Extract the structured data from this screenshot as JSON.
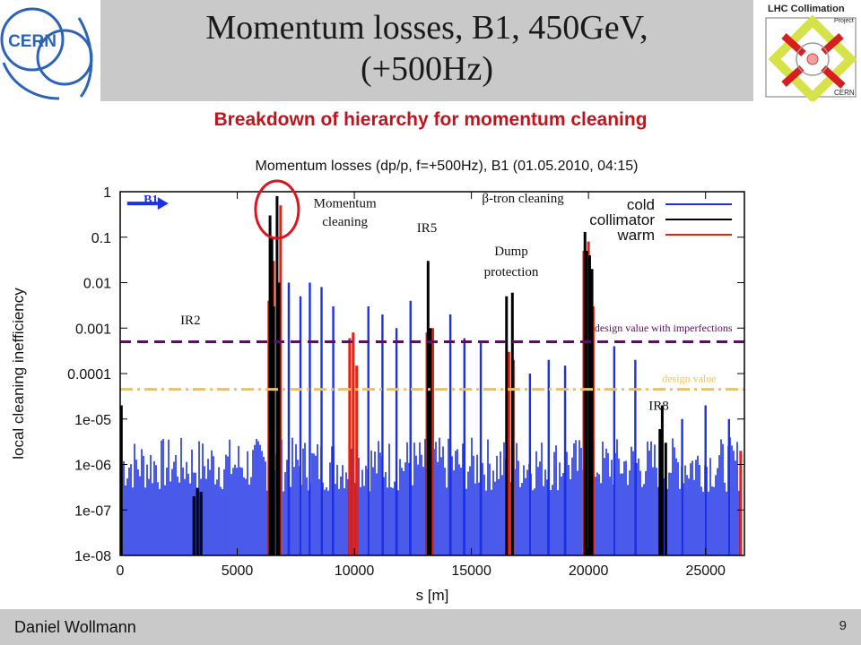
{
  "slide": {
    "title_line1": "Momentum losses, B1, 450GeV,",
    "title_line2": "(+500Hz)",
    "subtitle": "Breakdown of hierarchy for momentum cleaning",
    "author": "Daniel Wollmann",
    "page_number": "9",
    "cern_logo_text": "CERN",
    "lhc_logo_text": "LHC Collimation",
    "lhc_logo_sub": "Project",
    "lhc_logo_bottom": "CERN"
  },
  "colors": {
    "cold": "#1c31e6",
    "collimator": "#000000",
    "warm": "#e8220f",
    "design_imperfections": "#5a1060",
    "design_value": "#f5c242",
    "subtitle": "#c0141c",
    "highlight_circle": "#d9161f"
  },
  "chart_data": {
    "type": "bar",
    "title": "Momentum losses (dp/p, f=+500Hz), B1 (01.05.2010, 04:15)",
    "xlabel": "s [m]",
    "ylabel": "local cleaning inefficiency",
    "xlim": [
      0,
      26659
    ],
    "ylim": [
      1e-08,
      1
    ],
    "yscale": "log",
    "x_ticks": [
      0,
      5000,
      10000,
      15000,
      20000,
      25000
    ],
    "x_tick_labels": [
      "0",
      "5000",
      "10000",
      "15000",
      "20000",
      "25000"
    ],
    "y_ticks": [
      1,
      0.1,
      0.01,
      0.001,
      0.0001,
      1e-05,
      1e-06,
      1e-07,
      1e-08
    ],
    "y_tick_labels": [
      "1",
      "0.1",
      "0.01",
      "0.001",
      "0.0001",
      "1e-05",
      "1e-06",
      "1e-07",
      "1e-08"
    ],
    "legend": {
      "placement": "top-right",
      "entries": [
        {
          "label": "cold",
          "color": "#1c31e6"
        },
        {
          "label": "collimator",
          "color": "#000000"
        },
        {
          "label": "warm",
          "color": "#e8220f"
        }
      ]
    },
    "series": [
      {
        "name": "collimator",
        "points": [
          {
            "x": 50,
            "y": 2e-05
          },
          {
            "x": 3150,
            "y": 2e-07
          },
          {
            "x": 3300,
            "y": 3e-07
          },
          {
            "x": 3450,
            "y": 2.5e-07
          },
          {
            "x": 6400,
            "y": 0.3
          },
          {
            "x": 6480,
            "y": 0.1
          },
          {
            "x": 6560,
            "y": 0.003
          },
          {
            "x": 6700,
            "y": 0.8
          },
          {
            "x": 6780,
            "y": 0.01
          },
          {
            "x": 13150,
            "y": 0.03
          },
          {
            "x": 13250,
            "y": 0.001
          },
          {
            "x": 16500,
            "y": 0.005
          },
          {
            "x": 16750,
            "y": 0.006
          },
          {
            "x": 19850,
            "y": 0.13
          },
          {
            "x": 19920,
            "y": 0.05
          },
          {
            "x": 20050,
            "y": 0.04
          },
          {
            "x": 20150,
            "y": 0.02
          },
          {
            "x": 23050,
            "y": 6e-06
          },
          {
            "x": 23150,
            "y": 2e-05
          },
          {
            "x": 23300,
            "y": 3e-06
          }
        ]
      },
      {
        "name": "warm",
        "points": [
          {
            "x": 6350,
            "y": 0.004
          },
          {
            "x": 6550,
            "y": 0.03
          },
          {
            "x": 6850,
            "y": 0.5
          },
          {
            "x": 9800,
            "y": 0.0006
          },
          {
            "x": 9950,
            "y": 0.0008
          },
          {
            "x": 10100,
            "y": 0.00015
          },
          {
            "x": 13100,
            "y": 0.0008
          },
          {
            "x": 13350,
            "y": 0.001
          },
          {
            "x": 16600,
            "y": 0.0003
          },
          {
            "x": 16800,
            "y": 0.0002
          },
          {
            "x": 19800,
            "y": 0.05
          },
          {
            "x": 20000,
            "y": 0.08
          },
          {
            "x": 20200,
            "y": 0.003
          },
          {
            "x": 26500,
            "y": 2e-06
          }
        ]
      },
      {
        "name": "cold",
        "points": [
          {
            "x": 7200,
            "y": 0.01
          },
          {
            "x": 7700,
            "y": 0.005
          },
          {
            "x": 8100,
            "y": 0.01
          },
          {
            "x": 8600,
            "y": 0.008
          },
          {
            "x": 9100,
            "y": 0.003
          },
          {
            "x": 10600,
            "y": 0.003
          },
          {
            "x": 11200,
            "y": 0.002
          },
          {
            "x": 11800,
            "y": 0.001
          },
          {
            "x": 12400,
            "y": 0.004
          },
          {
            "x": 14100,
            "y": 0.002
          },
          {
            "x": 14700,
            "y": 0.0006
          },
          {
            "x": 15400,
            "y": 0.0005
          },
          {
            "x": 17500,
            "y": 0.0001
          },
          {
            "x": 18300,
            "y": 0.0002
          },
          {
            "x": 19000,
            "y": 0.00015
          },
          {
            "x": 21100,
            "y": 0.0004
          },
          {
            "x": 22000,
            "y": 0.0002
          },
          {
            "x": 24000,
            "y": 1e-05
          },
          {
            "x": 25000,
            "y": 2e-05
          },
          {
            "x": 26000,
            "y": 1e-05
          }
        ]
      }
    ],
    "reference_lines": [
      {
        "label": "design value with imperfections",
        "y": 0.0005,
        "style": "dashed",
        "color": "#5a1060"
      },
      {
        "label": "design value",
        "y": 4.5e-05,
        "style": "dash-dot",
        "color": "#f5c242"
      }
    ],
    "annotations": [
      {
        "text": "B1",
        "x": 1000,
        "y": 0.55
      },
      {
        "text": "Momentum",
        "x": 9600,
        "y": 0.45
      },
      {
        "text": "cleaning",
        "x": 9600,
        "y": 0.18
      },
      {
        "text": "IR5",
        "x": 13100,
        "y": 0.13
      },
      {
        "text": "β-tron cleaning",
        "x": 17200,
        "y": 0.58
      },
      {
        "text": "Dump",
        "x": 16700,
        "y": 0.04
      },
      {
        "text": "protection",
        "x": 16700,
        "y": 0.014
      },
      {
        "text": "IR2",
        "x": 3000,
        "y": 0.0012
      },
      {
        "text": "design value with imperfections",
        "x": 23200,
        "y": 0.00085
      },
      {
        "text": "design value",
        "x": 24300,
        "y": 6.5e-05
      },
      {
        "text": "IR8",
        "x": 23000,
        "y": 1.6e-05
      }
    ]
  }
}
